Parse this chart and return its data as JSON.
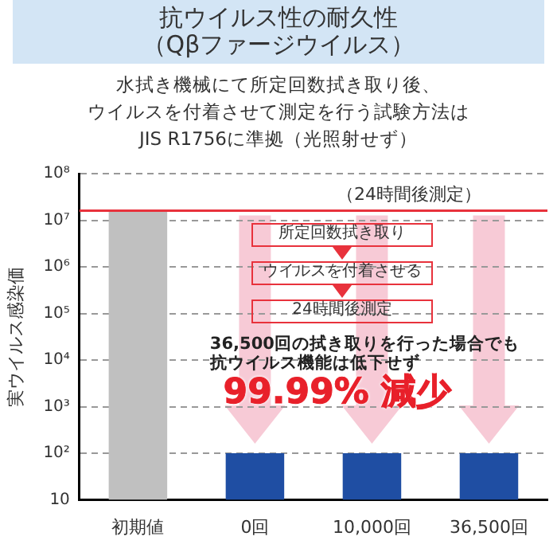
{
  "chart_data": {
    "type": "bar",
    "title": "抗ウイルス性の耐久性",
    "subtitle": "（Qβファージウイルス）",
    "ylabel": "実ウイルス感染価",
    "categories": [
      "初期値",
      "0回",
      "10,000回",
      "36,500回"
    ],
    "values": [
      16000000,
      100,
      100,
      100
    ],
    "colors": [
      "#c0c0c0",
      "#1f4ea3",
      "#1f4ea3",
      "#1f4ea3"
    ],
    "log": true,
    "ylim": [
      10,
      100000000
    ],
    "yticks": [
      10,
      {
        "value": 100,
        "label": "10²"
      },
      {
        "value": 1000,
        "label": "10³"
      },
      {
        "value": 10000,
        "label": "10⁴"
      },
      {
        "value": 100000,
        "label": "10⁵"
      },
      {
        "value": 1000000,
        "label": "10⁶"
      },
      {
        "value": 10000000,
        "label": "10⁷"
      },
      {
        "value": 100000000,
        "label": "10⁸"
      }
    ],
    "grid": "y",
    "ref_lines": [
      {
        "axis": "y",
        "value": 16000000,
        "label": "（24時間後測定）",
        "color": "#e8323c"
      }
    ],
    "annotations": [
      "水拭き機械にて所定回数拭き取り後、",
      "ウイルスを付着させて測定を行う試験方法は",
      "JIS R1756に準拠（光照射せず）",
      "所定回数拭き取り",
      "ウイルスを付着させる",
      "24時間後測定",
      "36,500回の拭き取りを行った場合でも",
      "抗ウイルス機能は低下せず",
      "99.99% 減少"
    ]
  }
}
